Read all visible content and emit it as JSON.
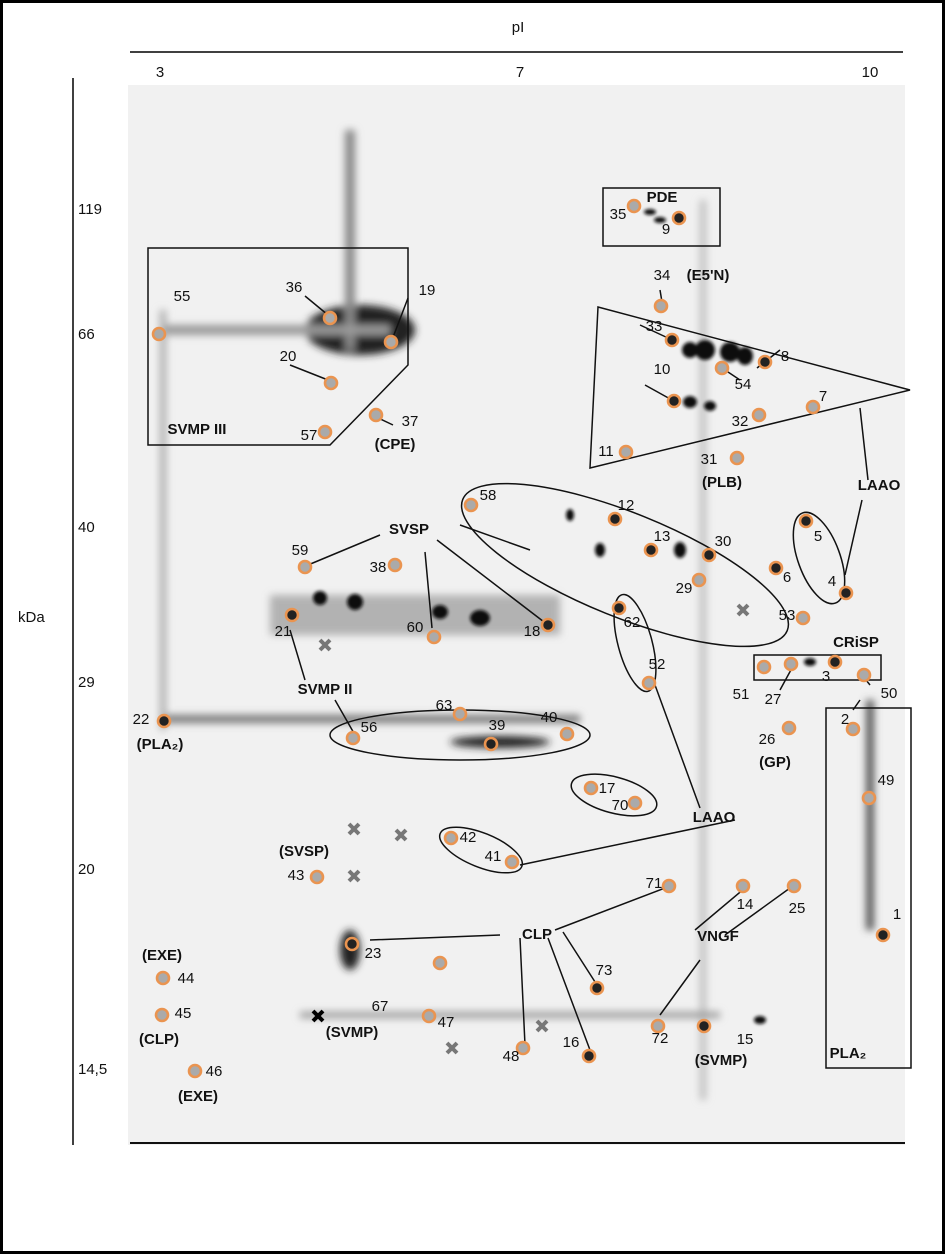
{
  "axis": {
    "x_title": "pI",
    "x_ticks": [
      "3",
      "7",
      "10"
    ],
    "y_title": "kDa",
    "y_ticks": [
      "119",
      "66",
      "40",
      "29",
      "20",
      "14,5"
    ]
  },
  "spots": [
    "1",
    "2",
    "3",
    "4",
    "5",
    "6",
    "7",
    "8",
    "9",
    "10",
    "11",
    "12",
    "13",
    "14",
    "15",
    "16",
    "17",
    "18",
    "19",
    "20",
    "21",
    "22",
    "23",
    "25",
    "26",
    "27",
    "29",
    "30",
    "31",
    "32",
    "33",
    "34",
    "35",
    "36",
    "37",
    "38",
    "39",
    "40",
    "41",
    "42",
    "43",
    "44",
    "45",
    "46",
    "47",
    "48",
    "49",
    "50",
    "51",
    "52",
    "53",
    "54",
    "55",
    "56",
    "57",
    "58",
    "59",
    "60",
    "62",
    "63",
    "67",
    "70",
    "71",
    "72",
    "73"
  ],
  "groups": [
    "PDE",
    "(E5'N)",
    "LAAO",
    "LAAO",
    "SVSP",
    "SVMP III",
    "(CPE)",
    "(PLB)",
    "SVMP II",
    "(PLA₂)",
    "CRiSP",
    "(GP)",
    "PLA₂",
    "(SVSP)",
    "CLP",
    "VNGF",
    "(SVMP)",
    "(SVMP)",
    "(EXE)",
    "(CLP)",
    "(EXE)"
  ]
}
